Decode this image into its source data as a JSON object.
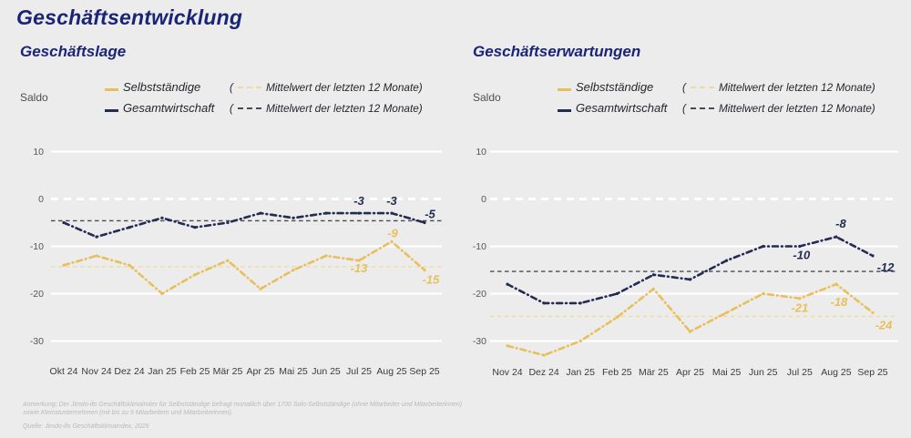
{
  "page": {
    "title": "Geschäftsentwicklung"
  },
  "legend": {
    "paren_open": "(",
    "paren_close": ")"
  },
  "colors": {
    "background": "#ececec",
    "grid": "#ffffff",
    "title": "#1b2577",
    "selbststaendige": "#e7c05c",
    "gesamtwirtschaft": "#232c52",
    "selbststaendige_mean": "#eed9a1",
    "gesamtwirtschaft_mean": "#4a4a55",
    "tick_text": "#555555",
    "axis_text": "#3b3b3b",
    "footnote": "#b9b9b9"
  },
  "chart_data": [
    {
      "type": "line",
      "title": "Geschäftslage",
      "ylabel": "Saldo",
      "yticks": [
        10,
        0,
        -10,
        -20,
        -30
      ],
      "ylim": [
        -35,
        12
      ],
      "grid": true,
      "categories": [
        "Okt 24",
        "Nov 24",
        "Dez 24",
        "Jan 25",
        "Feb 25",
        "Mär 25",
        "Apr 25",
        "Mai 25",
        "Jun 25",
        "Jul 25",
        "Aug 25",
        "Sep 25"
      ],
      "series": [
        {
          "name": "Selbstständige",
          "color_key": "selbststaendige",
          "mean_label": "Mittelwert der letzten 12 Monate",
          "mean_12m": -14.3,
          "values": [
            -14,
            -12,
            -14,
            -20,
            -16,
            -13,
            -19,
            -15,
            -12,
            -13,
            -9,
            -15
          ],
          "point_labels": [
            {
              "at": "Jul 25",
              "text": "-13",
              "dx": 0,
              "dy": 13
            },
            {
              "at": "Aug 25",
              "text": "-9",
              "dx": 1,
              "dy": -5
            },
            {
              "at": "Sep 25",
              "text": "-15",
              "dx": 7,
              "dy": 15
            }
          ]
        },
        {
          "name": "Gesamtwirtschaft",
          "color_key": "gesamtwirtschaft",
          "mean_label": "Mittelwert der letzten 12 Monate",
          "mean_12m": -4.6,
          "values": [
            -5,
            -8,
            -6,
            -4,
            -6,
            -5,
            -3,
            -4,
            -3,
            -3,
            -3,
            -5
          ],
          "point_labels": [
            {
              "at": "Jul 25",
              "text": "-3",
              "dx": 0,
              "dy": -9
            },
            {
              "at": "Aug 25",
              "text": "-3",
              "dx": 0,
              "dy": -9
            },
            {
              "at": "Sep 25",
              "text": "-5",
              "dx": 6,
              "dy": -5
            }
          ]
        }
      ]
    },
    {
      "type": "line",
      "title": "Geschäftserwartungen",
      "ylabel": "Saldo",
      "yticks": [
        10,
        0,
        -10,
        -20,
        -30
      ],
      "ylim": [
        -35,
        12
      ],
      "grid": true,
      "categories": [
        "Nov 24",
        "Dez 24",
        "Jan 25",
        "Feb 25",
        "Mär 25",
        "Apr 25",
        "Mai 25",
        "Jun 25",
        "Jul 25",
        "Aug 25",
        "Sep 25"
      ],
      "series": [
        {
          "name": "Selbstständige",
          "color_key": "selbststaendige",
          "mean_label": "Mittelwert der letzten 12 Monate",
          "mean_12m": -24.8,
          "values": [
            -31,
            -33,
            -30,
            -25,
            -19,
            -28,
            -24,
            -20,
            -21,
            -18,
            -24
          ],
          "point_labels": [
            {
              "at": "Jul 25",
              "text": "-21",
              "dx": 0,
              "dy": 15
            },
            {
              "at": "Aug 25",
              "text": "-18",
              "dx": 3,
              "dy": 24
            },
            {
              "at": "Sep 25",
              "text": "-24",
              "dx": 12,
              "dy": 18
            }
          ]
        },
        {
          "name": "Gesamtwirtschaft",
          "color_key": "gesamtwirtschaft",
          "mean_label": "Mittelwert der letzten 12 Monate",
          "mean_12m": -15.3,
          "values": [
            -18,
            -22,
            -22,
            -20,
            -16,
            -17,
            -13,
            -10,
            -10,
            -8,
            -12
          ],
          "point_labels": [
            {
              "at": "Jul 25",
              "text": "-10",
              "dx": 2,
              "dy": 14
            },
            {
              "at": "Aug 25",
              "text": "-8",
              "dx": 5,
              "dy": -10
            },
            {
              "at": "Sep 25",
              "text": "-12",
              "dx": 14,
              "dy": 17
            }
          ]
        }
      ]
    }
  ],
  "footnote": {
    "anmerkung_line1": "Anmerkung: Der Jimdo-ifo Geschäftsklimaindex für Selbstständige befragt monatlich über 1700 Solo-Selbstständige (ohne Mitarbeiter und Mitarbeiterinnen)",
    "anmerkung_line2": "sowie Kleinstunternehmen (mit bis zu 9 Mitarbeitern und Mitarbeiterinnen).",
    "quelle": "Quelle: Jimdo-ifo Geschäftsklimaindex, 2025"
  }
}
